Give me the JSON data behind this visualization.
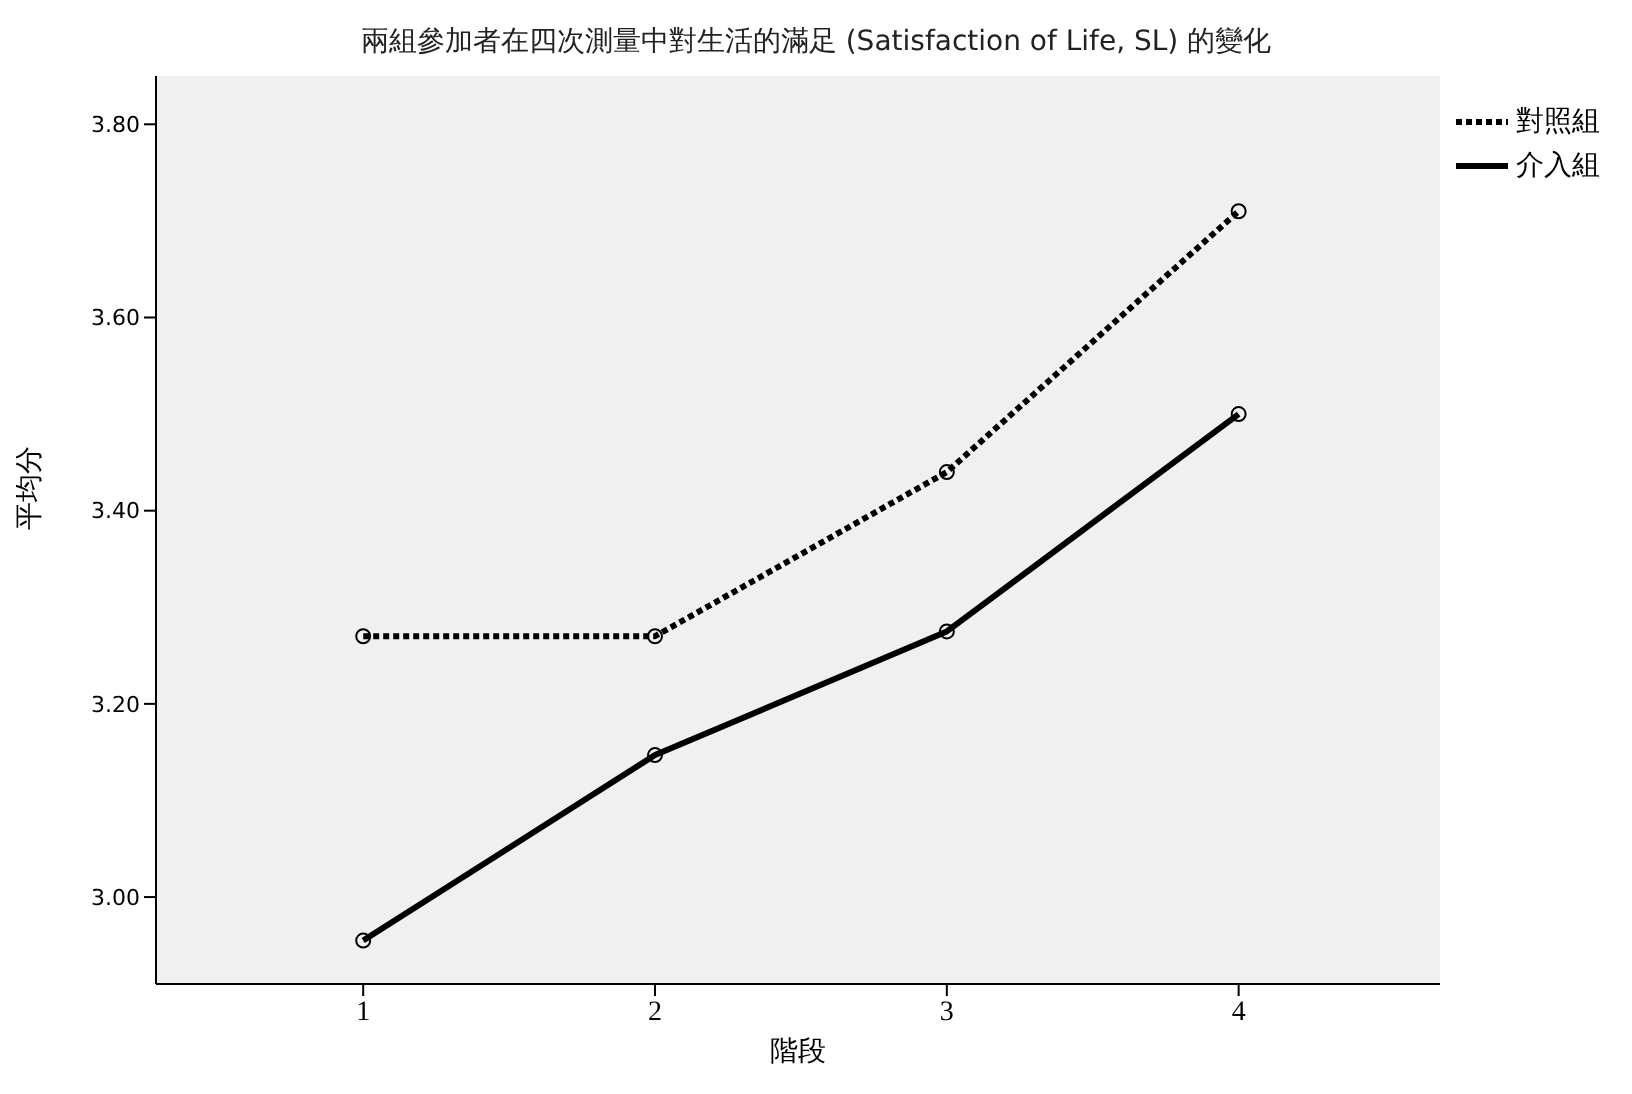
{
  "chart_data": {
    "type": "line",
    "title": "兩組參加者在四次測量中對生活的滿足 (Satisfaction of Life, SL) 的變化",
    "xlabel": "階段",
    "ylabel": "平均分",
    "x": [
      1,
      2,
      3,
      4
    ],
    "xlim": [
      0.29,
      4.69
    ],
    "xticks": [
      1,
      2,
      3,
      4
    ],
    "ylim": [
      2.91,
      3.85
    ],
    "yticks": [
      {
        "value": 3.0,
        "label": "3.00"
      },
      {
        "value": 3.2,
        "label": "3.20"
      },
      {
        "value": 3.4,
        "label": "3.40"
      },
      {
        "value": 3.6,
        "label": "3.60"
      },
      {
        "value": 3.8,
        "label": "3.80"
      }
    ],
    "series": [
      {
        "name": "對照組",
        "color": "#000000",
        "line_style": "dotted",
        "values": [
          3.27,
          3.27,
          3.44,
          3.71
        ]
      },
      {
        "name": "介入組",
        "color": "#000000",
        "line_style": "solid",
        "values": [
          2.955,
          3.147,
          3.275,
          3.5
        ]
      }
    ],
    "marker": "circle",
    "legend": "top right"
  }
}
